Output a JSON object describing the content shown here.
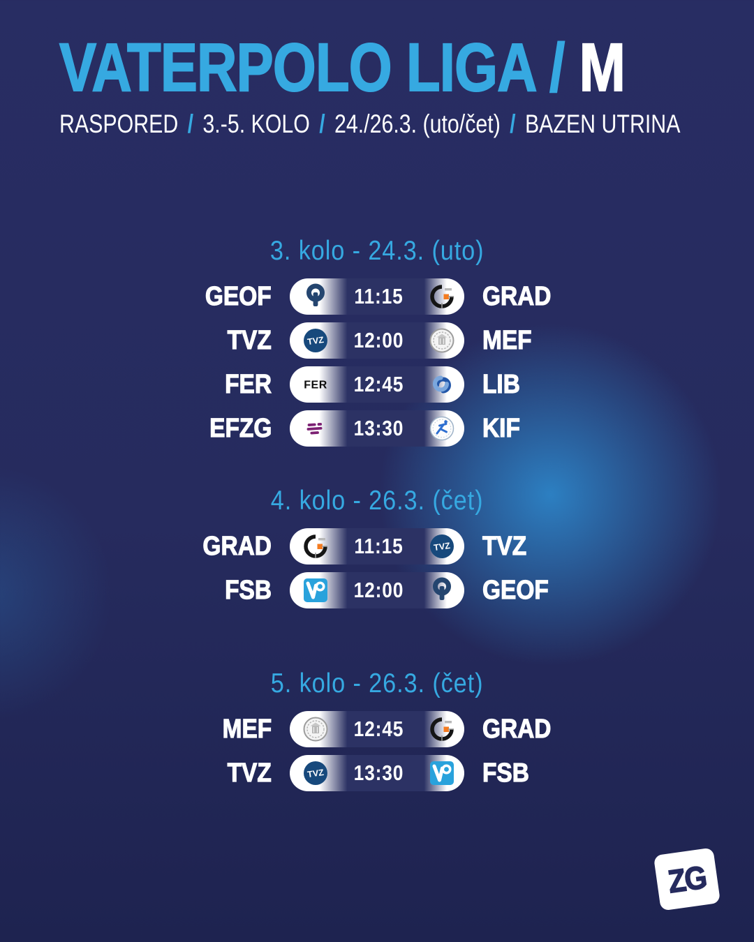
{
  "title": {
    "main": "VATERPOLO LIGA /",
    "gender": "M"
  },
  "subtitle": {
    "parts": [
      "RASPORED",
      "3.-5. KOLO",
      "24./26.3. (uto/čet)",
      "BAZEN UTRINA"
    ],
    "separator": "/"
  },
  "sections": [
    {
      "heading": "3. kolo - 24.3. (uto)",
      "matches": [
        {
          "home": "GEOF",
          "time": "11:15",
          "away": "GRAD",
          "home_logo": "geof-logo",
          "away_logo": "grad-logo"
        },
        {
          "home": "TVZ",
          "time": "12:00",
          "away": "MEF",
          "home_logo": "tvz-logo",
          "away_logo": "mef-logo"
        },
        {
          "home": "FER",
          "time": "12:45",
          "away": "LIB",
          "home_logo": "fer-logo",
          "away_logo": "lib-logo"
        },
        {
          "home": "EFZG",
          "time": "13:30",
          "away": "KIF",
          "home_logo": "efzg-logo",
          "away_logo": "kif-logo"
        }
      ]
    },
    {
      "heading": "4. kolo - 26.3. (čet)",
      "matches": [
        {
          "home": "GRAD",
          "time": "11:15",
          "away": "TVZ",
          "home_logo": "grad-logo",
          "away_logo": "tvz-logo"
        },
        {
          "home": "FSB",
          "time": "12:00",
          "away": "GEOF",
          "home_logo": "fsb-logo",
          "away_logo": "geof-logo"
        }
      ]
    },
    {
      "heading": "5. kolo - 26.3. (čet)",
      "matches": [
        {
          "home": "MEF",
          "time": "12:45",
          "away": "GRAD",
          "home_logo": "mef-logo",
          "away_logo": "grad-logo"
        },
        {
          "home": "TVZ",
          "time": "13:30",
          "away": "FSB",
          "home_logo": "tvz-logo",
          "away_logo": "fsb-logo"
        }
      ]
    }
  ],
  "footer": {
    "logo_text": "ZG"
  },
  "colors": {
    "background": "#262b5e",
    "accent": "#36a9e1",
    "glow": "#2d84c7",
    "pill_dark": "#2c3264",
    "text": "#ffffff"
  }
}
